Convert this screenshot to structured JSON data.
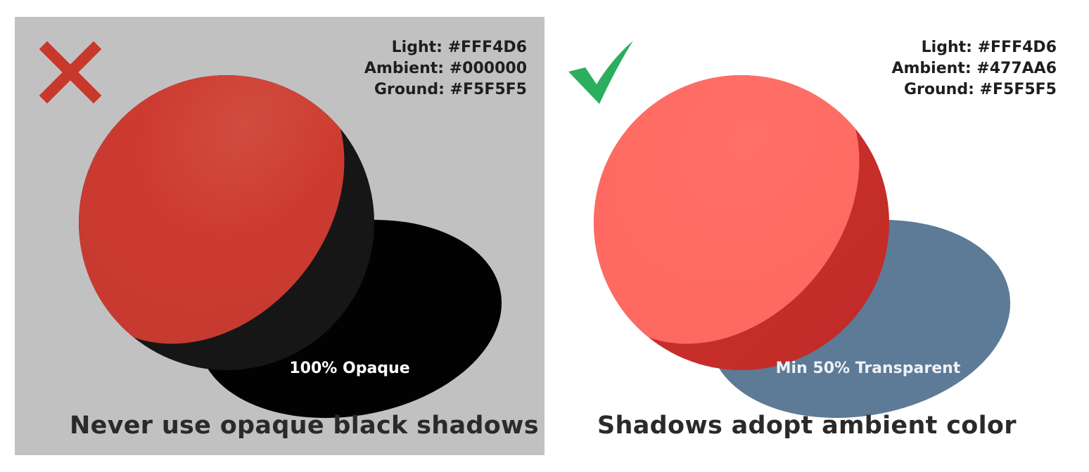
{
  "panels": {
    "bad": {
      "status": "incorrect",
      "mark_icon": "x-mark-icon",
      "mark_color": "#C8382D",
      "background": "#C1C1C1",
      "sphere_lit_color": "#CF3B30",
      "sphere_shade_color": "#161616",
      "shadow_color": "#000000",
      "settings": {
        "light": "Light: #FFF4D6",
        "ambient": "Ambient: #000000",
        "ground": "Ground: #F5F5F5"
      },
      "shadow_label": "100% Opaque",
      "caption": "Never use opaque black shadows"
    },
    "good": {
      "status": "correct",
      "mark_icon": "check-mark-icon",
      "mark_color": "#2BAE5E",
      "background": "#FFFFFF",
      "sphere_lit_color": "#FF6B63",
      "sphere_shade_color": "#C8302B",
      "shadow_color": "#5D7A97",
      "settings": {
        "light": "Light: #FFF4D6",
        "ambient": "Ambient: #477AA6",
        "ground": "Ground: #F5F5F5"
      },
      "shadow_label": "Min 50% Transparent",
      "caption": "Shadows adopt ambient color"
    }
  }
}
